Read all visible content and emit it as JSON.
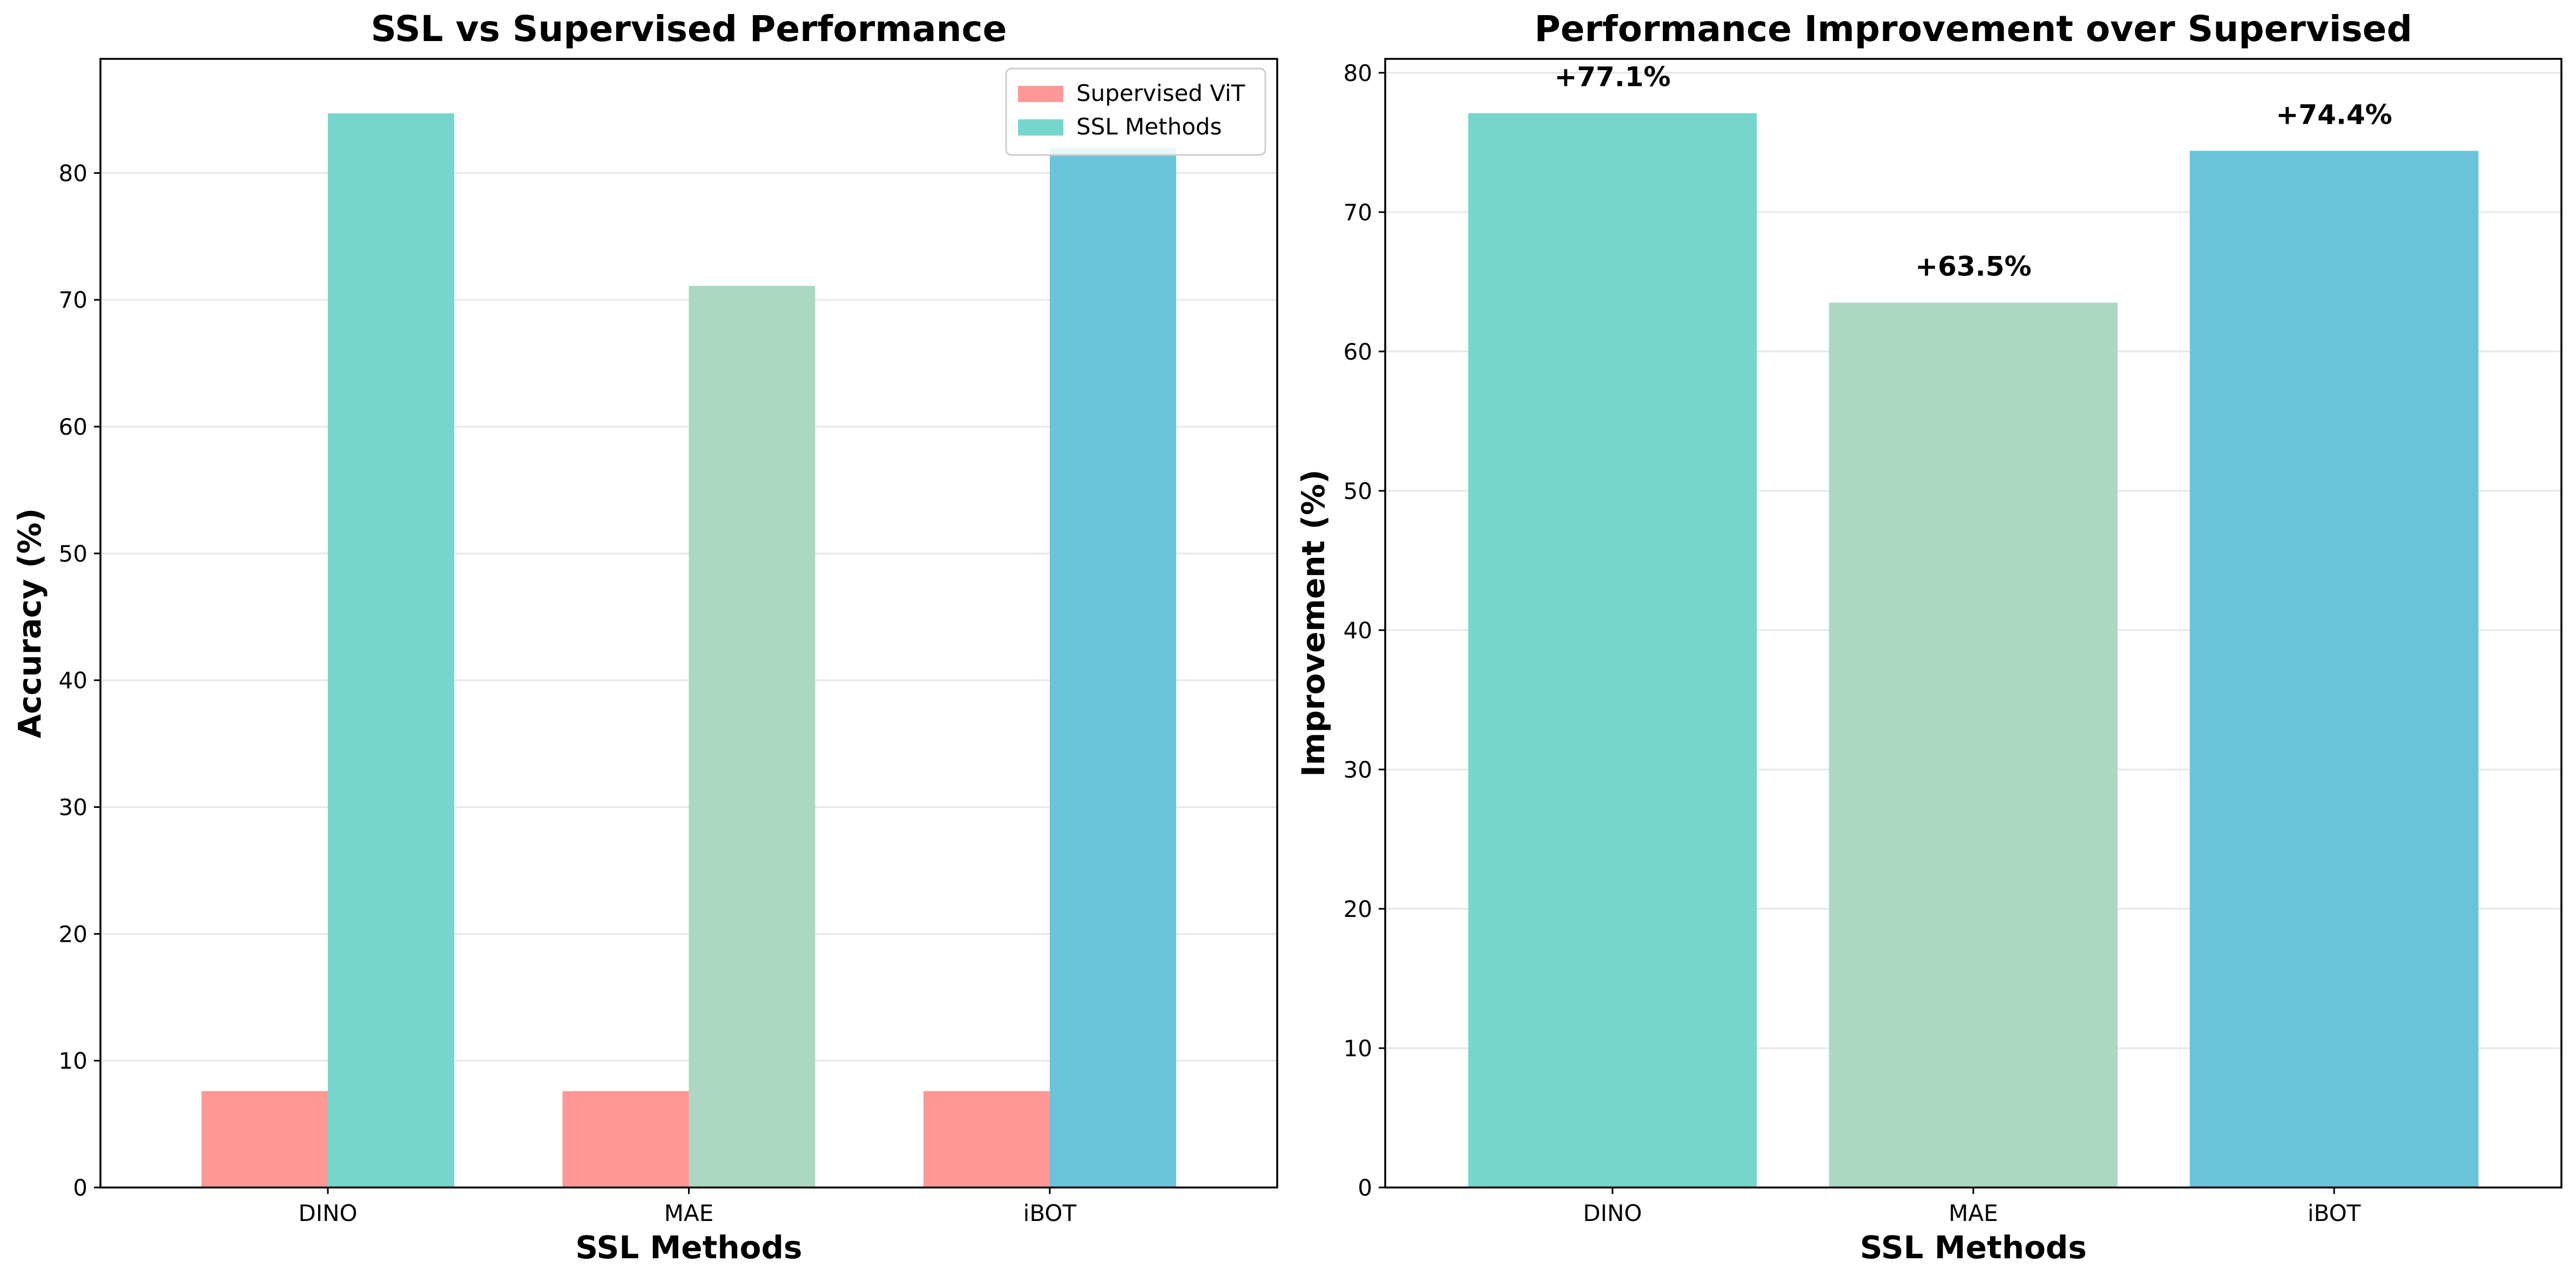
{
  "chart_data": [
    {
      "type": "bar",
      "title": "SSL vs Supervised Performance",
      "xlabel": "SSL Methods",
      "ylabel": "Accuracy (%)",
      "categories": [
        "DINO",
        "MAE",
        "iBOT"
      ],
      "ylim": [
        0,
        89
      ],
      "yticks": [
        0,
        10,
        20,
        30,
        40,
        50,
        60,
        70,
        80
      ],
      "grid": "y",
      "legend": "top-right",
      "series": [
        {
          "name": "Supervised ViT",
          "values": [
            7.6,
            7.6,
            7.6
          ],
          "colors": [
            "#ff9896",
            "#ff9896",
            "#ff9896"
          ]
        },
        {
          "name": "SSL Methods",
          "values": [
            84.7,
            71.1,
            82.0
          ],
          "colors": [
            "#76d6ce",
            "#acd7c2",
            "#6bc3da"
          ]
        }
      ],
      "legend_colors": [
        "#ff9896",
        "#76d6ce"
      ]
    },
    {
      "type": "bar",
      "title": "Performance Improvement over Supervised",
      "xlabel": "SSL Methods",
      "ylabel": "Improvement (%)",
      "categories": [
        "DINO",
        "MAE",
        "iBOT"
      ],
      "ylim": [
        0,
        81
      ],
      "yticks": [
        0,
        10,
        20,
        30,
        40,
        50,
        60,
        70,
        80
      ],
      "grid": "y",
      "series": [
        {
          "values": [
            77.1,
            63.5,
            74.4
          ],
          "colors": [
            "#76d6ce",
            "#acd7c2",
            "#6bc3da"
          ]
        }
      ],
      "data_labels": [
        "+77.1%",
        "+63.5%",
        "+74.4%"
      ]
    }
  ]
}
